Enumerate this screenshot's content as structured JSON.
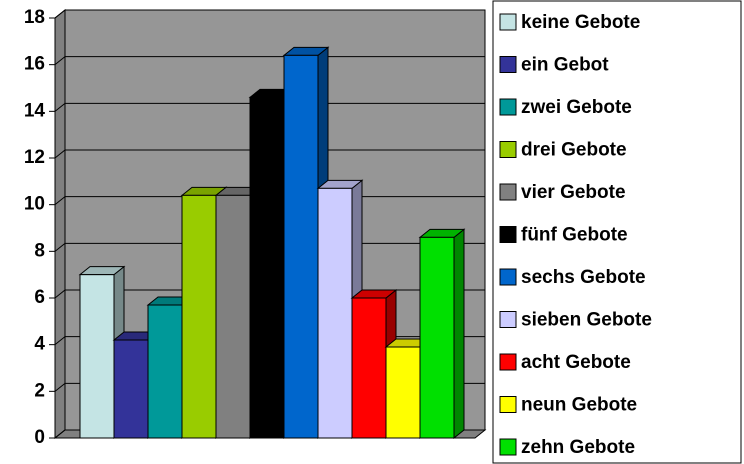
{
  "chart_data": {
    "type": "bar3d",
    "categories": [
      null
    ],
    "series": [
      {
        "name": "keine Gebote",
        "color": "#c4e4e4",
        "values": [
          7
        ]
      },
      {
        "name": "ein Gebot",
        "color": "#333399",
        "values": [
          4.2
        ]
      },
      {
        "name": "zwei Gebote",
        "color": "#009999",
        "values": [
          5.7
        ]
      },
      {
        "name": "drei Gebote",
        "color": "#99cc00",
        "values": [
          10.4
        ]
      },
      {
        "name": "vier Gebote",
        "color": "#808080",
        "values": [
          10.4
        ]
      },
      {
        "name": "fünf Gebote",
        "color": "#000000",
        "values": [
          14.6
        ]
      },
      {
        "name": "sechs Gebote",
        "color": "#0066cc",
        "values": [
          16.4
        ]
      },
      {
        "name": "sieben Gebote",
        "color": "#ccccff",
        "values": [
          10.7
        ]
      },
      {
        "name": "acht Gebote",
        "color": "#ff0000",
        "values": [
          6
        ]
      },
      {
        "name": "neun Gebote",
        "color": "#ffff00",
        "values": [
          3.9
        ]
      },
      {
        "name": "zehn Gebote",
        "color": "#00e000",
        "values": [
          8.6
        ]
      }
    ],
    "ylim": [
      0,
      18
    ],
    "yticks": [
      0,
      2,
      4,
      6,
      8,
      10,
      12,
      14,
      16,
      18
    ],
    "grid": true,
    "legend": "right"
  }
}
